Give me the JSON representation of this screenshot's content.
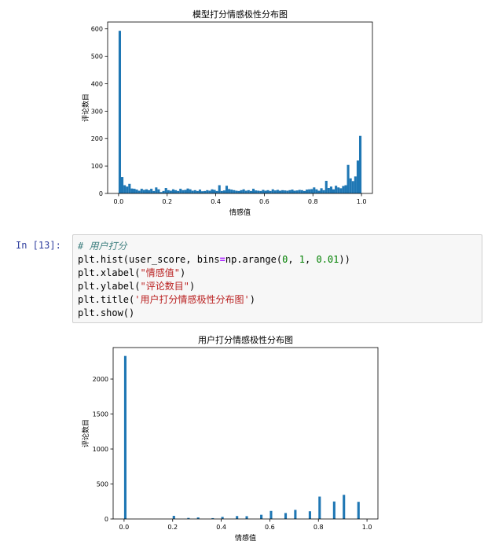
{
  "cell": {
    "prompt": "In  [13]:",
    "comment": "# 用户打分",
    "line_hist_pre": "plt.hist(user_score, bins",
    "line_hist_op": "=",
    "line_hist_mid1": "np.arange(",
    "line_hist_n1": "0",
    "line_hist_sep1": ", ",
    "line_hist_n2": "1",
    "line_hist_sep2": ", ",
    "line_hist_n3": "0.01",
    "line_hist_end": "))",
    "line_xlabel_pre": "plt.xlabel(",
    "line_xlabel_str": "\"情感值\"",
    "line_xlabel_end": ")",
    "line_ylabel_pre": "plt.ylabel(",
    "line_ylabel_str": "\"评论数目\"",
    "line_ylabel_end": ")",
    "line_title_pre": "plt.title(",
    "line_title_str": "'用户打分情感极性分布图'",
    "line_title_end": ")",
    "line_show": "plt.show()"
  },
  "colors": {
    "bar": "#1f77b4",
    "prompt": "#303f9f"
  },
  "chart_data": [
    {
      "type": "bar",
      "title": "模型打分情感极性分布图",
      "xlabel": "情感值",
      "ylabel": "评论数目",
      "xlim": [
        -0.045,
        1.045
      ],
      "ylim": [
        0,
        625
      ],
      "xticks": [
        0.0,
        0.2,
        0.4,
        0.6,
        0.8,
        1.0
      ],
      "xtick_labels": [
        "0.0",
        "0.2",
        "0.4",
        "0.6",
        "0.8",
        "1.0"
      ],
      "yticks": [
        0,
        100,
        200,
        300,
        400,
        500,
        600
      ],
      "ytick_labels": [
        "0",
        "100",
        "200",
        "300",
        "400",
        "500",
        "600"
      ],
      "bin_width": 0.01,
      "bin_start": 0.0,
      "values": [
        593,
        60,
        30,
        25,
        35,
        18,
        17,
        14,
        10,
        17,
        13,
        15,
        12,
        17,
        9,
        22,
        15,
        5,
        9,
        20,
        12,
        10,
        15,
        12,
        9,
        17,
        12,
        13,
        18,
        15,
        10,
        12,
        9,
        14,
        8,
        9,
        12,
        10,
        15,
        13,
        9,
        30,
        9,
        11,
        28,
        16,
        14,
        12,
        10,
        9,
        12,
        15,
        10,
        12,
        9,
        17,
        11,
        10,
        9,
        13,
        10,
        12,
        9,
        15,
        11,
        13,
        10,
        12,
        11,
        10,
        12,
        14,
        10,
        11,
        13,
        12,
        9,
        14,
        15,
        16,
        22,
        15,
        10,
        19,
        12,
        46,
        20,
        25,
        15,
        28,
        22,
        19,
        27,
        30,
        104,
        55,
        45,
        62,
        120,
        210
      ]
    },
    {
      "type": "bar",
      "title": "用户打分情感极性分布图",
      "xlabel": "情感值",
      "ylabel": "评论数目",
      "xlim": [
        -0.045,
        1.045
      ],
      "ylim": [
        0,
        2450
      ],
      "xticks": [
        0.0,
        0.2,
        0.4,
        0.6,
        0.8,
        1.0
      ],
      "xtick_labels": [
        "0.0",
        "0.2",
        "0.4",
        "0.6",
        "0.8",
        "1.0"
      ],
      "yticks": [
        0,
        500,
        1000,
        1500,
        2000
      ],
      "ytick_labels": [
        "0",
        "500",
        "1000",
        "1500",
        "2000"
      ],
      "bin_width": 0.01,
      "bars": [
        {
          "x": 0.0,
          "y": 2330
        },
        {
          "x": 0.2,
          "y": 45
        },
        {
          "x": 0.26,
          "y": 15
        },
        {
          "x": 0.3,
          "y": 22
        },
        {
          "x": 0.36,
          "y": 12
        },
        {
          "x": 0.4,
          "y": 30
        },
        {
          "x": 0.46,
          "y": 42
        },
        {
          "x": 0.5,
          "y": 40
        },
        {
          "x": 0.56,
          "y": 60
        },
        {
          "x": 0.6,
          "y": 115
        },
        {
          "x": 0.66,
          "y": 85
        },
        {
          "x": 0.7,
          "y": 130
        },
        {
          "x": 0.76,
          "y": 110
        },
        {
          "x": 0.8,
          "y": 320
        },
        {
          "x": 0.86,
          "y": 250
        },
        {
          "x": 0.9,
          "y": 345
        },
        {
          "x": 0.96,
          "y": 245
        }
      ]
    }
  ]
}
